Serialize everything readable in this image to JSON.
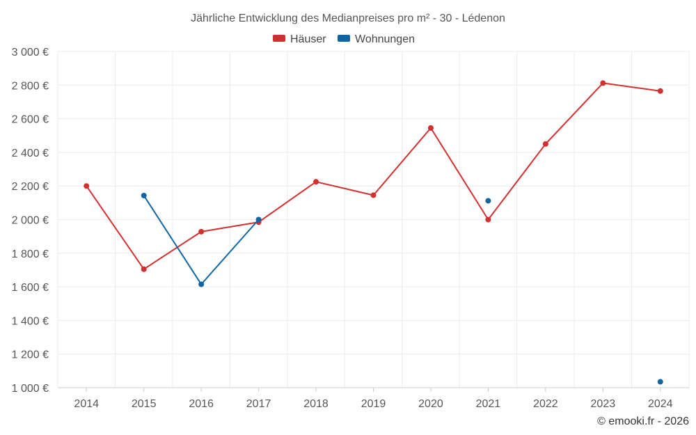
{
  "chart_data": {
    "type": "line",
    "title": "Jährliche Entwicklung des Medianpreises pro m² - 30 - Lédenon",
    "categories": [
      "2014",
      "2015",
      "2016",
      "2017",
      "2018",
      "2019",
      "2020",
      "2021",
      "2022",
      "2023",
      "2024"
    ],
    "y_tick_labels": [
      "1 000 €",
      "1 200 €",
      "1 400 €",
      "1 600 €",
      "1 800 €",
      "2 000 €",
      "2 200 €",
      "2 400 €",
      "2 600 €",
      "2 800 €",
      "3 000 €"
    ],
    "ylim": [
      1000,
      3000
    ],
    "y_step": 200,
    "grid": true,
    "legend_position": "top-center",
    "series": [
      {
        "name": "Häuser",
        "color": "#d32f2f",
        "values": [
          2200,
          1705,
          1928,
          1985,
          2225,
          2145,
          2545,
          2000,
          2450,
          2812,
          2765
        ]
      },
      {
        "name": "Wohnungen",
        "color": "#0d66a3",
        "values": [
          null,
          2143,
          1615,
          2000,
          null,
          null,
          null,
          2112,
          null,
          null,
          1035
        ]
      }
    ]
  },
  "credit": "© emooki.fr - 2026"
}
